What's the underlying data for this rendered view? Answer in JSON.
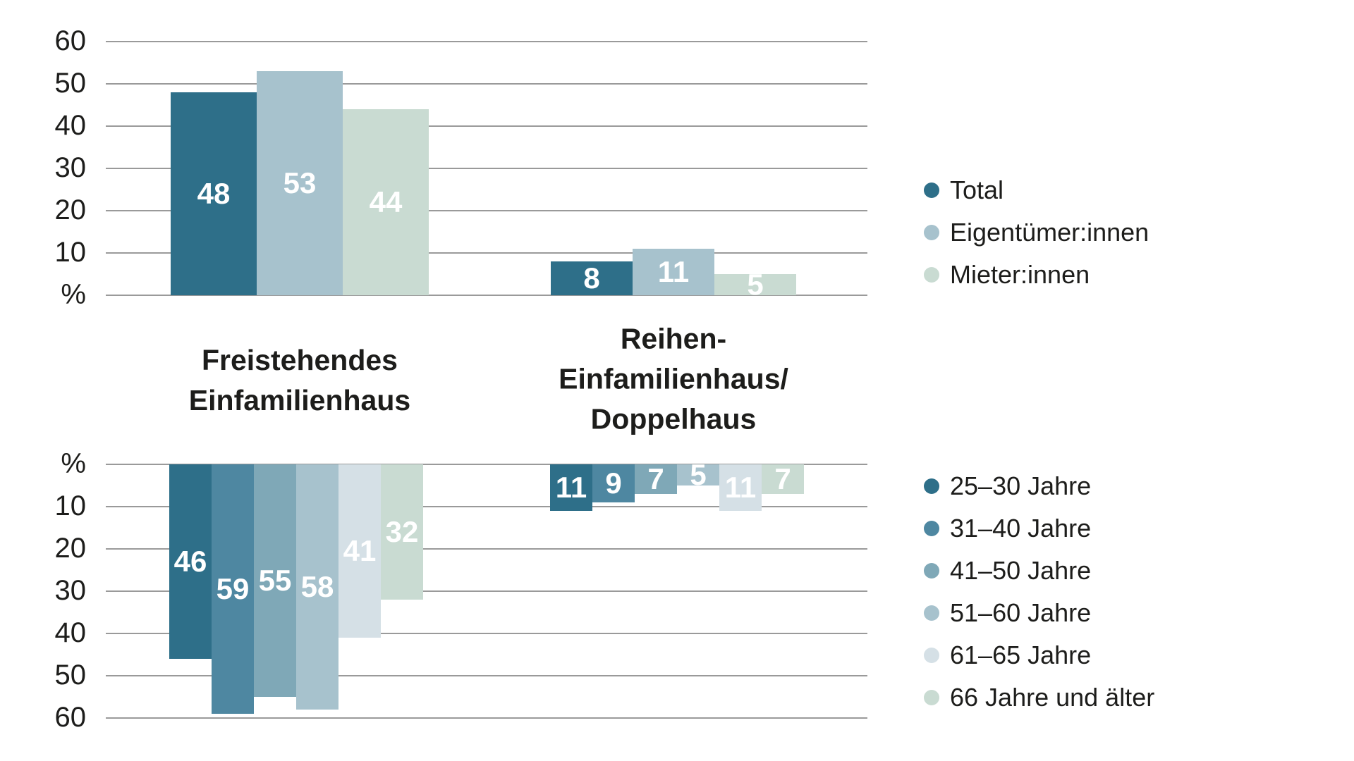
{
  "background": "#ffffff",
  "text_color": "#1d1d1b",
  "grid_color": "#9a9a9a",
  "bar_value_color": "#ffffff",
  "chart_data": [
    {
      "type": "bar",
      "direction": "up",
      "unit": "%",
      "y_axis_ticks": [
        "60",
        "50",
        "40",
        "30",
        "20",
        "10",
        "%"
      ],
      "ylim": [
        0,
        60
      ],
      "grid": true,
      "legend_position": "right",
      "categories": [
        "Freistehendes\nEinfamilienhaus",
        "Reihen-\nEinfamilienhaus/\nDoppelhaus"
      ],
      "series": [
        {
          "name": "Total",
          "color": "#2e6f89",
          "values": [
            48,
            8
          ]
        },
        {
          "name": "Eigentümer:innen",
          "color": "#a7c2cd",
          "values": [
            53,
            11
          ]
        },
        {
          "name": "Mieter:innen",
          "color": "#c9dbd2",
          "values": [
            44,
            5
          ]
        }
      ]
    },
    {
      "type": "bar",
      "direction": "down",
      "unit": "%",
      "y_axis_ticks": [
        "%",
        "10",
        "20",
        "30",
        "40",
        "50",
        "60"
      ],
      "ylim": [
        0,
        60
      ],
      "grid": true,
      "legend_position": "right",
      "categories": [
        "Freistehendes\nEinfamilienhaus",
        "Reihen-\nEinfamilienhaus/\nDoppelhaus"
      ],
      "series": [
        {
          "name": "25–30 Jahre",
          "color": "#2e6f89",
          "values": [
            46,
            11
          ]
        },
        {
          "name": "31–40 Jahre",
          "color": "#4e87a1",
          "values": [
            59,
            9
          ]
        },
        {
          "name": "41–50 Jahre",
          "color": "#7fa8b7",
          "values": [
            55,
            7
          ]
        },
        {
          "name": "51–60 Jahre",
          "color": "#a7c2cd",
          "values": [
            58,
            5
          ]
        },
        {
          "name": "61–65 Jahre",
          "color": "#d5e0e6",
          "values": [
            41,
            11
          ]
        },
        {
          "name": "66 Jahre und älter",
          "color": "#c9dbd2",
          "values": [
            32,
            7
          ]
        }
      ]
    }
  ]
}
